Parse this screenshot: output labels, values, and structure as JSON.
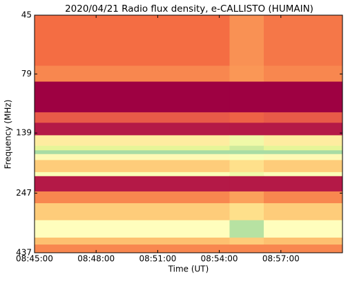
{
  "chart_data": {
    "type": "heatmap",
    "title": "2020/04/21  Radio flux density, e-CALLISTO (HUMAIN)",
    "xlabel": "Time (UT)",
    "ylabel": "Frequency (MHz)",
    "x_edges": [
      "08:45:00",
      "08:54:30",
      "08:56:10",
      "09:00:00"
    ],
    "y_edges": [
      45,
      73,
      85,
      114,
      126,
      142,
      157,
      164,
      170,
      180,
      202,
      210,
      243,
      272,
      320,
      378,
      404,
      437
    ],
    "z": [
      [
        0.25,
        0.32,
        0.27
      ],
      [
        0.3,
        0.33,
        0.3
      ],
      [
        0.0,
        0.0,
        0.0
      ],
      [
        0.2,
        0.22,
        0.2
      ],
      [
        0.05,
        0.05,
        0.05
      ],
      [
        0.55,
        0.7,
        0.55
      ],
      [
        0.75,
        0.8,
        0.75
      ],
      [
        0.88,
        0.88,
        0.88
      ],
      [
        0.6,
        0.65,
        0.6
      ],
      [
        0.45,
        0.5,
        0.45
      ],
      [
        0.65,
        0.7,
        0.65
      ],
      [
        0.05,
        0.05,
        0.05
      ],
      [
        0.3,
        0.35,
        0.3
      ],
      [
        0.45,
        0.5,
        0.45
      ],
      [
        0.62,
        0.85,
        0.62
      ],
      [
        0.42,
        0.45,
        0.42
      ],
      [
        0.3,
        0.3,
        0.3
      ]
    ],
    "zlim": [
      0,
      1
    ],
    "colormap": [
      "#9e0142",
      "#d53e4f",
      "#f46d43",
      "#fdae61",
      "#fee08b",
      "#ffffbf",
      "#e6f598",
      "#abdda4",
      "#66c2a5"
    ],
    "xlim": [
      "08:45:00",
      "09:00:00"
    ],
    "xticks": [
      "08:45:00",
      "08:48:00",
      "08:51:00",
      "08:54:00",
      "08:57:00"
    ],
    "ylim": [
      45,
      437
    ],
    "yticks": [
      45,
      79,
      139,
      247,
      437
    ],
    "y_scale": "log",
    "y_inverted": true
  }
}
